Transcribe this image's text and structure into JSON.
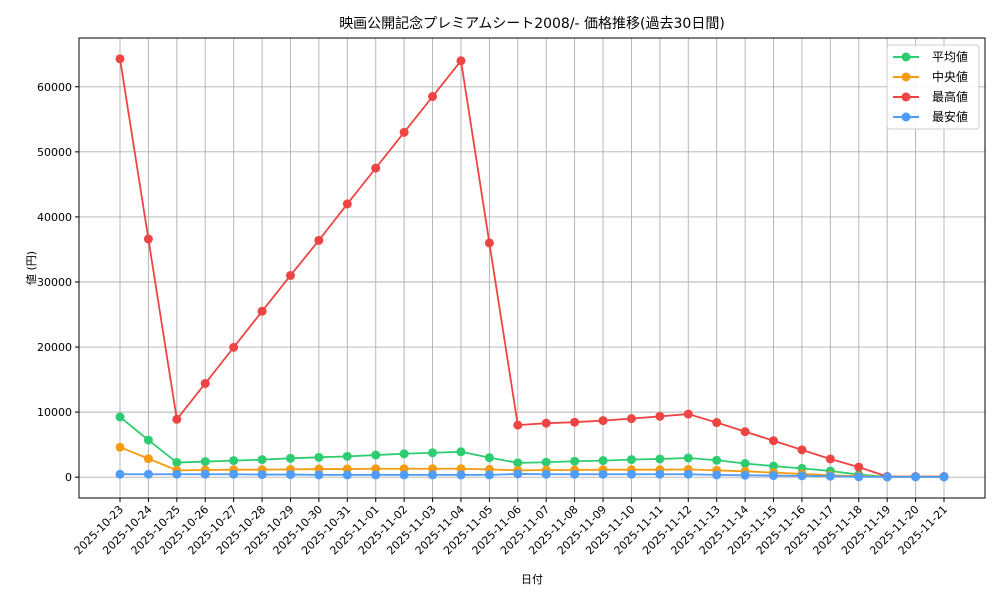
{
  "chart_data": {
    "type": "line",
    "title": "映画公開記念プレミアムシート2008/- 価格推移(過去30日間)",
    "xlabel": "日付",
    "ylabel": "値 (円)",
    "ylim": [
      -3200,
      67500
    ],
    "yticks": [
      0,
      10000,
      20000,
      30000,
      40000,
      50000,
      60000
    ],
    "grid": true,
    "legend_position": "upper right",
    "categories": [
      "2025-10-23",
      "2025-10-24",
      "2025-10-25",
      "2025-10-26",
      "2025-10-27",
      "2025-10-28",
      "2025-10-29",
      "2025-10-30",
      "2025-10-31",
      "2025-11-01",
      "2025-11-02",
      "2025-11-03",
      "2025-11-04",
      "2025-11-05",
      "2025-11-06",
      "2025-11-07",
      "2025-11-08",
      "2025-11-09",
      "2025-11-10",
      "2025-11-11",
      "2025-11-12",
      "2025-11-13",
      "2025-11-14",
      "2025-11-15",
      "2025-11-16",
      "2025-11-17",
      "2025-11-18",
      "2025-11-19",
      "2025-11-20",
      "2025-11-21"
    ],
    "series": [
      {
        "name": "平均値",
        "color": "#2ecc71",
        "values": [
          9250,
          5700,
          2250,
          2400,
          2550,
          2700,
          2900,
          3050,
          3200,
          3400,
          3600,
          3750,
          3900,
          3000,
          2200,
          2300,
          2450,
          2550,
          2700,
          2800,
          2950,
          2600,
          2100,
          1700,
          1350,
          950,
          400,
          50,
          50,
          50
        ]
      },
      {
        "name": "中央値",
        "color": "#f39c12",
        "values": [
          4600,
          2850,
          1050,
          1100,
          1150,
          1150,
          1200,
          1250,
          1250,
          1300,
          1300,
          1300,
          1300,
          1200,
          1050,
          1100,
          1100,
          1150,
          1150,
          1150,
          1200,
          1050,
          900,
          700,
          500,
          300,
          150,
          50,
          50,
          50
        ]
      },
      {
        "name": "最高値",
        "color": "#ef4444",
        "values": [
          64300,
          36600,
          8900,
          14400,
          19950,
          25500,
          31000,
          36400,
          42000,
          47500,
          53000,
          58500,
          64000,
          36000,
          8000,
          8300,
          8450,
          8700,
          9000,
          9350,
          9700,
          8400,
          7000,
          5600,
          4200,
          2800,
          1550,
          100,
          100,
          100
        ]
      },
      {
        "name": "最安値",
        "color": "#4f9cf9",
        "values": [
          450,
          450,
          450,
          450,
          450,
          400,
          400,
          350,
          350,
          350,
          350,
          350,
          350,
          350,
          500,
          450,
          450,
          450,
          450,
          450,
          450,
          350,
          300,
          250,
          200,
          150,
          50,
          50,
          50,
          50
        ]
      }
    ]
  }
}
